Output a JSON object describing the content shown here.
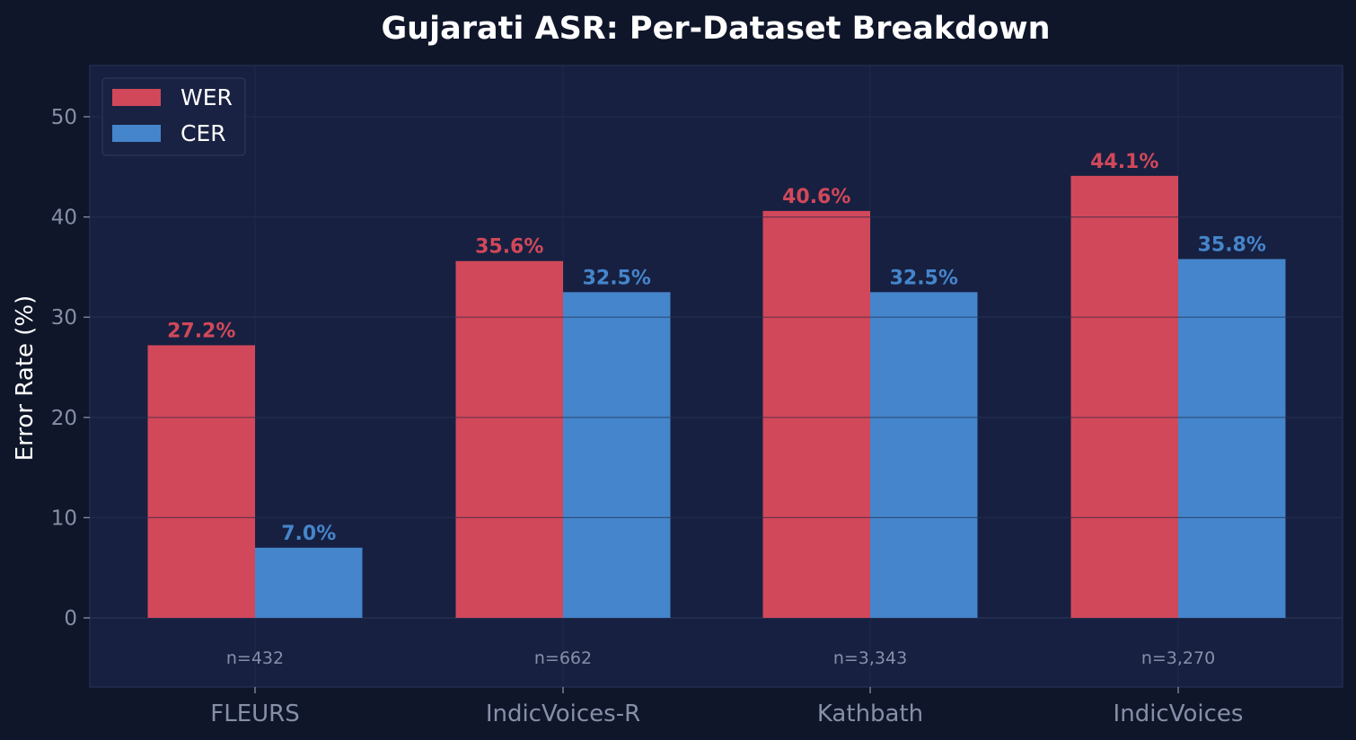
{
  "colors": {
    "page_bg": "#10162a",
    "plot_bg": "#172041",
    "grid": "#283356",
    "text": "#ffffff",
    "muted": "#8590a8",
    "wer": "#d1485a",
    "cer": "#4585cb"
  },
  "chart_data": {
    "type": "bar",
    "title": "Gujarati ASR: Per-Dataset Breakdown",
    "ylabel": "Error Rate (%)",
    "xlabel": "",
    "ylim": [
      -7,
      55
    ],
    "yticks": [
      0,
      10,
      20,
      30,
      40,
      50
    ],
    "categories": [
      "FLEURS",
      "IndicVoices-R",
      "Kathbath",
      "IndicVoices"
    ],
    "sample_sizes": [
      "n=432",
      "n=662",
      "n=3,343",
      "n=3,270"
    ],
    "series": [
      {
        "name": "WER",
        "color": "#d1485a",
        "values": [
          27.2,
          35.6,
          40.6,
          44.1
        ],
        "labels": [
          "27.2%",
          "35.6%",
          "40.6%",
          "44.1%"
        ]
      },
      {
        "name": "CER",
        "color": "#4585cb",
        "values": [
          7.0,
          32.5,
          32.5,
          35.8
        ],
        "labels": [
          "7.0%",
          "32.5%",
          "32.5%",
          "35.8%"
        ]
      }
    ],
    "legend_position": "top-left",
    "grid": true
  }
}
